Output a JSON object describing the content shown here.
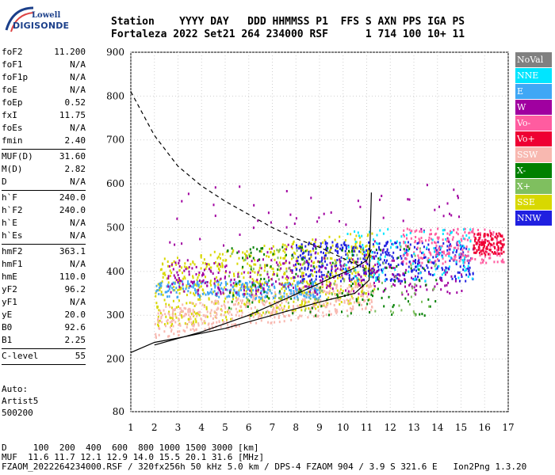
{
  "logo": {
    "line1": "Lowell",
    "line2": "DIGISONDE"
  },
  "header": {
    "row1": "Station    YYYY DAY   DDD HHMMSS P1  FFS S AXN PPS IGA PS",
    "row2": "Fortaleza 2022 Set21 264 234000 RSF      1 714 100 10+ 11"
  },
  "params": {
    "group1": [
      {
        "name": "foF2",
        "value": "11.200"
      },
      {
        "name": "foF1",
        "value": "N/A"
      },
      {
        "name": "foF1p",
        "value": "N/A"
      },
      {
        "name": "foE",
        "value": "N/A"
      },
      {
        "name": "foEp",
        "value": "0.52"
      },
      {
        "name": "fxI",
        "value": "11.75"
      },
      {
        "name": "foEs",
        "value": "N/A"
      },
      {
        "name": "fmin",
        "value": "2.40"
      }
    ],
    "group2": [
      {
        "name": "MUF(D)",
        "value": "31.60"
      },
      {
        "name": "M(D)",
        "value": "2.82"
      },
      {
        "name": "D",
        "value": "N/A"
      }
    ],
    "group3": [
      {
        "name": "h`F",
        "value": "240.0"
      },
      {
        "name": "h`F2",
        "value": "240.0"
      },
      {
        "name": "h`E",
        "value": "N/A"
      },
      {
        "name": "h`Es",
        "value": "N/A"
      }
    ],
    "group4": [
      {
        "name": "hmF2",
        "value": "363.1"
      },
      {
        "name": "hmF1",
        "value": "N/A"
      },
      {
        "name": "hmE",
        "value": "110.0"
      },
      {
        "name": "yF2",
        "value": "96.2"
      },
      {
        "name": "yF1",
        "value": "N/A"
      },
      {
        "name": "yE",
        "value": "20.0"
      },
      {
        "name": "B0",
        "value": "92.6"
      },
      {
        "name": "B1",
        "value": "2.25"
      }
    ],
    "group5": [
      {
        "name": "C-level",
        "value": "55"
      }
    ]
  },
  "auto": {
    "line1": "Auto:",
    "line2": "Artist5",
    "line3": "500200"
  },
  "legend": [
    {
      "label": "NoVal",
      "color": "#808080"
    },
    {
      "label": "NNE",
      "color": "#00e5ff"
    },
    {
      "label": "E",
      "color": "#3fa7f5"
    },
    {
      "label": "W",
      "color": "#a000a0"
    },
    {
      "label": "Vo-",
      "color": "#ff5ca0"
    },
    {
      "label": "Vo+",
      "color": "#ee0033"
    },
    {
      "label": "SSW",
      "color": "#f8b8b0"
    },
    {
      "label": "X-",
      "color": "#008000"
    },
    {
      "label": "X+",
      "color": "#7fbf5f"
    },
    {
      "label": "SSE",
      "color": "#d8d800"
    },
    {
      "label": "NNW",
      "color": "#2020e0"
    }
  ],
  "footer": {
    "line1": "D     100  200  400  600  800 1000 1500 3000 [km]",
    "line2": "MUF  11.6 11.7 12.1 12.9 14.0 15.5 20.1 31.6 [MHz]",
    "line3": "FZAOM_2022264234000.RSF / 320fx256h 50 kHz 5.0 km / DPS-4 FZAOM 904 / 3.9 S 321.6 E   Ion2Png 1.3.20"
  },
  "chart_data": {
    "type": "scatter",
    "xlim": [
      1,
      17
    ],
    "ylim": [
      80,
      900
    ],
    "x_ticks": [
      "1",
      "2",
      "3",
      "4",
      "5",
      "6",
      "7",
      "8",
      "9",
      "10",
      "11",
      "12",
      "13",
      "14",
      "15",
      "16",
      "17"
    ],
    "y_ticks": [
      "80",
      "200",
      "300",
      "400",
      "500",
      "600",
      "700",
      "800",
      "900"
    ],
    "grid": true,
    "series": [
      {
        "name": "SSE",
        "color": "#d8d800",
        "x_range": [
          2.0,
          11.3
        ],
        "y_range": [
          270,
          430
        ]
      },
      {
        "name": "SSW",
        "color": "#f8b8b0",
        "x_range": [
          2.0,
          11.3
        ],
        "y_range": [
          250,
          320
        ]
      },
      {
        "name": "E",
        "color": "#3fa7f5",
        "x_range": [
          2.0,
          9.0
        ],
        "y_range": [
          340,
          380
        ]
      },
      {
        "name": "NNW",
        "color": "#2020e0",
        "x_range": [
          7.8,
          15.5
        ],
        "y_range": [
          380,
          470
        ]
      },
      {
        "name": "W",
        "color": "#a000a0",
        "x_range": [
          2.5,
          15.0
        ],
        "y_range": [
          350,
          600
        ]
      },
      {
        "name": "Vo-",
        "color": "#ff5ca0",
        "x_range": [
          12.5,
          16.8
        ],
        "y_range": [
          420,
          500
        ]
      },
      {
        "name": "Vo+",
        "color": "#ee0033",
        "x_range": [
          15.5,
          16.8
        ],
        "y_range": [
          440,
          490
        ]
      },
      {
        "name": "NNE",
        "color": "#00e5ff",
        "x_range": [
          10.0,
          15.5
        ],
        "y_range": [
          380,
          500
        ]
      },
      {
        "name": "X-",
        "color": "#008000",
        "x_range": [
          5.0,
          14.0
        ],
        "y_range": [
          300,
          460
        ]
      },
      {
        "name": "X+",
        "color": "#7fbf5f",
        "x_range": [
          5.0,
          14.0
        ],
        "y_range": [
          300,
          460
        ]
      }
    ],
    "profile_line": {
      "x": [
        1.0,
        2.0,
        3.0,
        5.0,
        7.0,
        9.0,
        10.5,
        11.1,
        11.2
      ],
      "y": [
        215,
        238,
        248,
        270,
        300,
        330,
        350,
        380,
        580
      ]
    },
    "trace_line": {
      "x": [
        2.0,
        4.0,
        6.0,
        8.0,
        9.5,
        10.5,
        11.0,
        11.2
      ],
      "y": [
        232,
        262,
        300,
        348,
        385,
        408,
        425,
        450
      ]
    },
    "muf_curve": {
      "x": [
        1.0,
        1.5,
        2.0,
        3.0,
        4.0,
        5.0,
        6.0,
        7.0,
        8.0,
        9.0,
        10.0,
        11.0
      ],
      "y": [
        810,
        760,
        710,
        640,
        595,
        560,
        530,
        500,
        475,
        455,
        430,
        405
      ]
    }
  }
}
